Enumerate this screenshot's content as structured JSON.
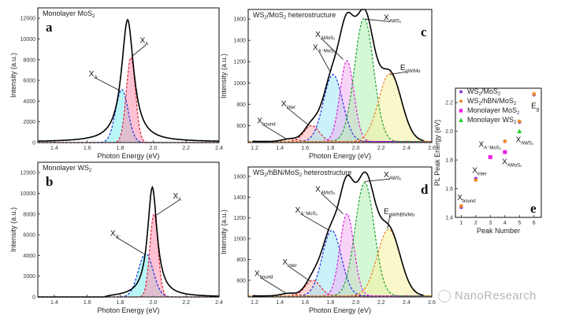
{
  "watermark": "NanoResearch",
  "chart_data": [
    {
      "id": "a",
      "type": "line",
      "panel_letter": "a",
      "title": "Monolayer MoS₂",
      "xlabel": "Photon Energy (eV)",
      "ylabel": "Intensity (a.u.)",
      "xlim": [
        1.3,
        2.4
      ],
      "ylim": [
        0,
        13000
      ],
      "xticks": [
        1.4,
        1.6,
        1.8,
        2.0,
        2.2,
        2.4
      ],
      "yticks": [
        0,
        2000,
        4000,
        6000,
        8000,
        10000,
        12000
      ],
      "measured": {
        "baseline": 60,
        "peaks": [
          {
            "center": 1.845,
            "amp": 11800,
            "width": 0.045
          }
        ]
      },
      "components": [
        {
          "name": "X_A-",
          "label": "X",
          "sub": "A⁻",
          "center": 1.81,
          "amp": 5100,
          "sigma": 0.038,
          "color": "#2030e0",
          "fill": "#7ff0f0"
        },
        {
          "name": "X_A",
          "label": "X",
          "sub": "A",
          "center": 1.865,
          "amp": 8200,
          "sigma": 0.028,
          "color": "#e02030",
          "fill": "#ff90b0"
        }
      ],
      "annotations": [
        {
          "text": "X",
          "sub": "A",
          "x": 1.92,
          "y": 9600,
          "arrow_to": [
            1.87,
            8300
          ]
        },
        {
          "text": "X",
          "sub": "A⁻",
          "x": 1.61,
          "y": 6400,
          "arrow_to": [
            1.8,
            5000
          ]
        }
      ]
    },
    {
      "id": "b",
      "type": "line",
      "panel_letter": "b",
      "title": "Monolayer WS₂",
      "xlabel": "Photon Energy (eV)",
      "ylabel": "Intensity (a.u.)",
      "xlim": [
        1.3,
        2.4
      ],
      "ylim": [
        0,
        13000
      ],
      "xticks": [
        1.4,
        1.6,
        1.8,
        2.0,
        2.2,
        2.4
      ],
      "yticks": [
        0,
        2000,
        4000,
        6000,
        8000,
        10000,
        12000
      ],
      "measured": {
        "baseline": 0,
        "start": 1.7,
        "peaks": [
          {
            "center": 1.995,
            "amp": 10600,
            "width": 0.035
          }
        ]
      },
      "components": [
        {
          "name": "X_A-",
          "label": "X",
          "sub": "A⁻",
          "center": 1.955,
          "amp": 4200,
          "sigma": 0.045,
          "color": "#2030e0",
          "fill": "#7ff0f0"
        },
        {
          "name": "X_A",
          "label": "X",
          "sub": "A",
          "center": 2.005,
          "amp": 8000,
          "sigma": 0.025,
          "color": "#e02030",
          "fill": "#ff90b0"
        }
      ],
      "annotations": [
        {
          "text": "X",
          "sub": "A",
          "x": 2.12,
          "y": 9500,
          "arrow_to": [
            2.02,
            7900
          ]
        },
        {
          "text": "X",
          "sub": "A⁻",
          "x": 1.74,
          "y": 5900,
          "arrow_to": [
            1.94,
            4200
          ]
        }
      ]
    },
    {
      "id": "c",
      "type": "line",
      "panel_letter": "c",
      "title": "WS₂/MoS₂ heterostructure",
      "xlabel": "Photon Energy (eV)",
      "ylabel": "Intensity (a.u.)",
      "xlim": [
        1.15,
        2.6
      ],
      "ylim": [
        440,
        1690
      ],
      "xticks": [
        1.2,
        1.4,
        1.6,
        1.8,
        2.0,
        2.2,
        2.4,
        2.6
      ],
      "yticks": [
        600,
        800,
        1000,
        1200,
        1400,
        1600
      ],
      "baseline": 450,
      "components": [
        {
          "name": "X_bound",
          "center": 1.48,
          "amp": 25,
          "sigma": 0.06,
          "color": "#c06060",
          "fill": "#ffd0d0"
        },
        {
          "name": "X_inter",
          "center": 1.65,
          "amp": 150,
          "sigma": 0.06,
          "color": "#e02030",
          "fill": "#ffb0b0"
        },
        {
          "name": "X_A-_MoS2",
          "center": 1.82,
          "amp": 630,
          "sigma": 0.075,
          "color": "#2030e0",
          "fill": "#a0e8f5"
        },
        {
          "name": "X_A_MoS2",
          "center": 1.93,
          "amp": 760,
          "sigma": 0.055,
          "color": "#e020e0",
          "fill": "#f0b0f0"
        },
        {
          "name": "X_A_WS2",
          "center": 2.065,
          "amp": 1160,
          "sigma": 0.075,
          "color": "#20a030",
          "fill": "#b0f0b0"
        },
        {
          "name": "E_g_W/Mo",
          "center": 2.27,
          "amp": 640,
          "sigma": 0.09,
          "color": "#f08020",
          "fill": "#f5f0a0"
        }
      ],
      "annotations": [
        {
          "text": "X",
          "sub": "bound",
          "x": 1.22,
          "y": 620,
          "arrow_to": [
            1.45,
            475
          ]
        },
        {
          "text": "X",
          "sub": "inter",
          "x": 1.41,
          "y": 780,
          "arrow_to": [
            1.63,
            600
          ]
        },
        {
          "text": "X",
          "sub": "A⁻MoS₂",
          "x": 1.66,
          "y": 1310,
          "arrow_to": [
            1.8,
            1100
          ]
        },
        {
          "text": "X",
          "sub": "AMoS₂",
          "x": 1.68,
          "y": 1430,
          "arrow_to": [
            1.9,
            1220
          ]
        },
        {
          "text": "X",
          "sub": "AWS₂",
          "x": 2.22,
          "y": 1590,
          "arrow_to": [
            2.07,
            1600
          ]
        },
        {
          "text": "E",
          "sub": "gW/Mo",
          "x": 2.35,
          "y": 1120,
          "arrow_to": [
            2.27,
            1080
          ]
        }
      ]
    },
    {
      "id": "d",
      "type": "line",
      "panel_letter": "d",
      "title": "WS₂/hBN/MoS₂ heterostructure",
      "xlabel": "Photon Energy (eV)",
      "ylabel": "Intensity (a.u.)",
      "xlim": [
        1.15,
        2.6
      ],
      "ylim": [
        440,
        1690
      ],
      "xticks": [
        1.2,
        1.4,
        1.6,
        1.8,
        2.0,
        2.2,
        2.4,
        2.6
      ],
      "yticks": [
        600,
        800,
        1000,
        1200,
        1400,
        1600
      ],
      "baseline": 450,
      "components": [
        {
          "name": "X_bound",
          "center": 1.47,
          "amp": 25,
          "sigma": 0.06,
          "color": "#c06060",
          "fill": "#ffd0d0"
        },
        {
          "name": "X_inter",
          "center": 1.66,
          "amp": 150,
          "sigma": 0.06,
          "color": "#e02030",
          "fill": "#ffb0b0"
        },
        {
          "name": "X_A-_MoS2",
          "center": 1.81,
          "amp": 630,
          "sigma": 0.075,
          "color": "#2030e0",
          "fill": "#a0e8f5"
        },
        {
          "name": "X_A_MoS2",
          "center": 1.93,
          "amp": 790,
          "sigma": 0.055,
          "color": "#e020e0",
          "fill": "#f0b0f0"
        },
        {
          "name": "X_A_WS2",
          "center": 2.07,
          "amp": 1090,
          "sigma": 0.075,
          "color": "#20a030",
          "fill": "#b0f0b0"
        },
        {
          "name": "E_g_W/hBN/Mo",
          "center": 2.26,
          "amp": 640,
          "sigma": 0.09,
          "color": "#f08020",
          "fill": "#f5f0a0"
        }
      ],
      "annotations": [
        {
          "text": "X",
          "sub": "bound",
          "x": 1.2,
          "y": 640,
          "arrow_to": [
            1.45,
            475
          ]
        },
        {
          "text": "X",
          "sub": "inter",
          "x": 1.42,
          "y": 750,
          "arrow_to": [
            1.64,
            590
          ]
        },
        {
          "text": "X",
          "sub": "A⁻MoS₂",
          "x": 1.52,
          "y": 1250,
          "arrow_to": [
            1.79,
            1080
          ]
        },
        {
          "text": "X",
          "sub": "AMoS₂",
          "x": 1.68,
          "y": 1450,
          "arrow_to": [
            1.9,
            1240
          ]
        },
        {
          "text": "X",
          "sub": "AWS₂",
          "x": 2.22,
          "y": 1590,
          "arrow_to": [
            2.07,
            1550
          ]
        },
        {
          "text": "E",
          "sub": "gW/hBN/Mo",
          "x": 2.22,
          "y": 1240,
          "arrow_to": [
            2.25,
            1100
          ]
        }
      ]
    },
    {
      "id": "e",
      "type": "scatter",
      "panel_letter": "e",
      "title": "",
      "xlabel": "Peak Number",
      "ylabel": "PL Peak Energy (eV)",
      "xlim": [
        0.6,
        6.5
      ],
      "ylim": [
        1.4,
        2.3
      ],
      "xticks": [
        1,
        2,
        3,
        4,
        5,
        6
      ],
      "yticks": [
        1.4,
        1.6,
        1.8,
        2.0,
        2.2
      ],
      "legend": "top-left",
      "series": [
        {
          "name": "WS₂/MoS₂",
          "marker": "circle",
          "color": "#8a3ae0",
          "points": [
            [
              1,
              1.47
            ],
            [
              2,
              1.67
            ],
            [
              4,
              1.93
            ],
            [
              5,
              2.065
            ],
            [
              6,
              2.255
            ]
          ]
        },
        {
          "name": "WS₂/hBN/MoS₂",
          "marker": "circle",
          "color": "#f08a20",
          "points": [
            [
              1,
              1.48
            ],
            [
              2,
              1.66
            ],
            [
              4,
              1.93
            ],
            [
              5,
              2.07
            ],
            [
              6,
              2.26
            ]
          ]
        },
        {
          "name": "Monolayer MoS₂",
          "marker": "square",
          "color": "#f020e0",
          "points": [
            [
              3,
              1.82
            ],
            [
              4,
              1.855
            ]
          ]
        },
        {
          "name": "Monolayer WS₂",
          "marker": "triangle",
          "color": "#20d020",
          "points": [
            [
              5,
              2.0
            ]
          ]
        }
      ],
      "annotations": [
        {
          "text": "X",
          "sub": "bound",
          "x": 0.72,
          "y": 1.52
        },
        {
          "text": "X",
          "sub": "inter",
          "x": 1.75,
          "y": 1.71
        },
        {
          "text": "X",
          "sub": "A⁻MoS₂",
          "x": 2.2,
          "y": 1.89
        },
        {
          "text": "X",
          "sub": "AMoS₂",
          "x": 3.8,
          "y": 1.77
        },
        {
          "text": "X",
          "sub": "AWS₂",
          "x": 4.75,
          "y": 1.925
        },
        {
          "text": "E",
          "sub": "g",
          "x": 5.8,
          "y": 2.16
        }
      ]
    }
  ]
}
